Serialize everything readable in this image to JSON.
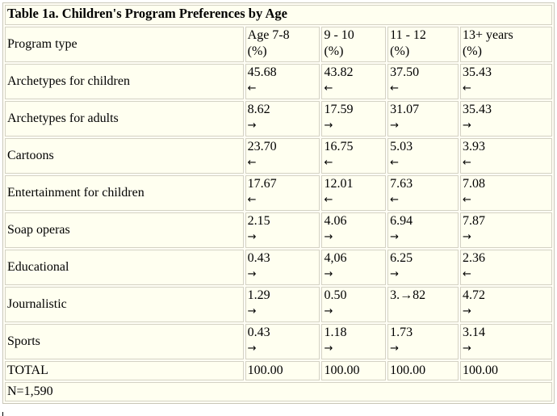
{
  "table": {
    "caption": "Table 1a. Children's Program Preferences by Age",
    "headers": {
      "label": "Program type",
      "columns": [
        {
          "line1": "Age 7-8",
          "line2": "(%)"
        },
        {
          "line1": "9 - 10",
          "line2": "(%)"
        },
        {
          "line1": "11 - 12",
          "line2": "(%)"
        },
        {
          "line1": "13+ years",
          "line2": "(%)"
        }
      ]
    },
    "rows": [
      {
        "label": "Archetypes for children",
        "cells": [
          {
            "v": "45.68",
            "a": "←"
          },
          {
            "v": "43.82",
            "a": "←"
          },
          {
            "v": "37.50",
            "a": "←"
          },
          {
            "v": "35.43",
            "a": "←"
          }
        ]
      },
      {
        "label": "Archetypes for adults",
        "cells": [
          {
            "v": "8.62",
            "a": "→"
          },
          {
            "v": "17.59",
            "a": "→"
          },
          {
            "v": "31.07",
            "a": "→"
          },
          {
            "v": "35.43",
            "a": "→"
          }
        ]
      },
      {
        "label": "Cartoons",
        "cells": [
          {
            "v": "23.70",
            "a": "←"
          },
          {
            "v": "16.75",
            "a": "←"
          },
          {
            "v": "5.03",
            "a": "←"
          },
          {
            "v": "3.93",
            "a": "←"
          }
        ]
      },
      {
        "label": "Entertainment for children",
        "cells": [
          {
            "v": "17.67",
            "a": "←"
          },
          {
            "v": "12.01",
            "a": "←"
          },
          {
            "v": "7.63",
            "a": "←"
          },
          {
            "v": "7.08",
            "a": "←"
          }
        ]
      },
      {
        "label": "Soap operas",
        "cells": [
          {
            "v": "2.15",
            "a": "→"
          },
          {
            "v": "4.06",
            "a": "→"
          },
          {
            "v": "6.94",
            "a": "→"
          },
          {
            "v": "7.87",
            "a": "→"
          }
        ]
      },
      {
        "label": "Educational",
        "cells": [
          {
            "v": "0.43",
            "a": "→"
          },
          {
            "v": "4,06",
            "a": "→"
          },
          {
            "v": "6.25",
            "a": "→"
          },
          {
            "v": "2.36",
            "a": "←"
          }
        ]
      },
      {
        "label": "Journalistic",
        "cells": [
          {
            "v": "1.29",
            "a": "→"
          },
          {
            "v": "0.50",
            "a": "→"
          },
          {
            "v": "3.→82",
            "a": ""
          },
          {
            "v": "4.72",
            "a": "→"
          }
        ]
      },
      {
        "label": "Sports",
        "cells": [
          {
            "v": "0.43",
            "a": "→"
          },
          {
            "v": "1.18",
            "a": "→"
          },
          {
            "v": "1.73",
            "a": "→"
          },
          {
            "v": "3.14",
            "a": "→"
          }
        ]
      }
    ],
    "total": {
      "label": "TOTAL",
      "values": [
        "100.00",
        "100.00",
        "100.00",
        "100.00"
      ]
    },
    "footnote": "N=1,590"
  }
}
